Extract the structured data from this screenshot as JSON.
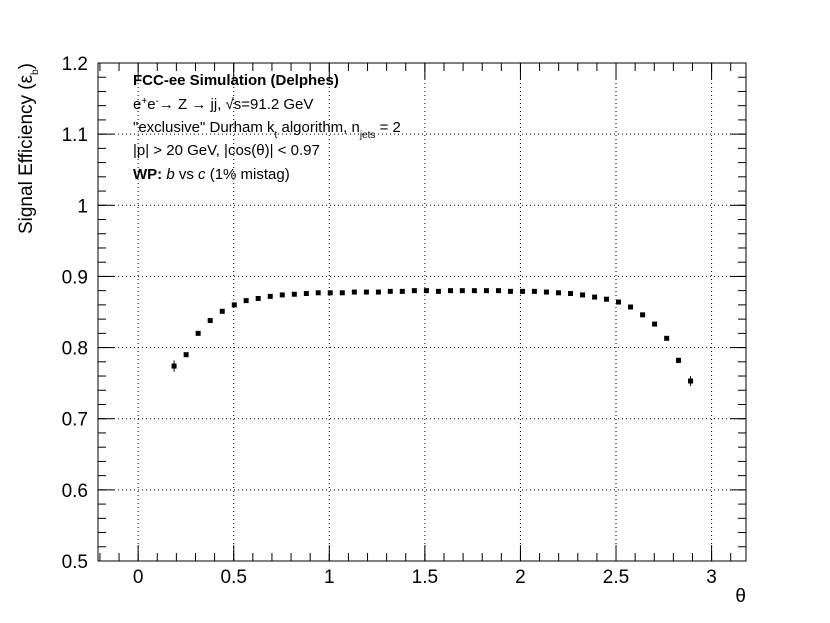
{
  "chart_data": {
    "type": "scatter",
    "x_label": "θ",
    "y_label": [
      {
        "text": "Signal Efficiency (ε"
      },
      {
        "text": "b",
        "style": "sub"
      },
      {
        "text": ")"
      }
    ],
    "annotations": [
      [
        {
          "text": "FCC-ee Simulation (Delphes)",
          "style": "bold"
        }
      ],
      [
        {
          "text": "e"
        },
        {
          "text": "+",
          "style": "sup"
        },
        {
          "text": "e"
        },
        {
          "text": "-",
          "style": "sup"
        },
        {
          "text": "→ Z → jj, √s=91.2 GeV"
        }
      ],
      [
        {
          "text": "\"exclusive\" Durham k"
        },
        {
          "text": "t",
          "style": "sub"
        },
        {
          "text": " algorithm, n"
        },
        {
          "text": "jets",
          "style": "sub"
        },
        {
          "text": " = 2"
        }
      ],
      [
        {
          "text": "|p| > 20 GeV, |cos(θ)| < 0.97"
        }
      ],
      [
        {
          "text": "WP:",
          "style": "bold"
        },
        {
          "text": " "
        },
        {
          "text": "b",
          "style": "italic"
        },
        {
          "text": " vs "
        },
        {
          "text": "c",
          "style": "italic"
        },
        {
          "text": " (1% mistag)"
        }
      ]
    ],
    "x": [
      0.188,
      0.251,
      0.314,
      0.377,
      0.44,
      0.503,
      0.565,
      0.628,
      0.691,
      0.754,
      0.817,
      0.88,
      0.942,
      1.005,
      1.068,
      1.131,
      1.194,
      1.257,
      1.319,
      1.382,
      1.445,
      1.508,
      1.571,
      1.634,
      1.696,
      1.759,
      1.822,
      1.885,
      1.948,
      2.011,
      2.073,
      2.136,
      2.199,
      2.262,
      2.325,
      2.388,
      2.45,
      2.513,
      2.576,
      2.639,
      2.702,
      2.765,
      2.827,
      2.89
    ],
    "values": [
      0.774,
      0.79,
      0.82,
      0.838,
      0.851,
      0.86,
      0.866,
      0.869,
      0.872,
      0.874,
      0.875,
      0.876,
      0.877,
      0.877,
      0.877,
      0.878,
      0.878,
      0.878,
      0.879,
      0.879,
      0.88,
      0.88,
      0.879,
      0.88,
      0.88,
      0.88,
      0.88,
      0.88,
      0.879,
      0.879,
      0.879,
      0.878,
      0.877,
      0.876,
      0.874,
      0.871,
      0.868,
      0.864,
      0.857,
      0.846,
      0.833,
      0.813,
      0.782,
      0.753
    ],
    "errors": [
      0.008,
      0.003,
      0.002,
      0.002,
      0.002,
      0.002,
      0.002,
      0.002,
      0.002,
      0.002,
      0.002,
      0.002,
      0.002,
      0.002,
      0.002,
      0.002,
      0.002,
      0.002,
      0.002,
      0.002,
      0.002,
      0.002,
      0.002,
      0.002,
      0.002,
      0.002,
      0.002,
      0.002,
      0.002,
      0.002,
      0.002,
      0.002,
      0.002,
      0.002,
      0.002,
      0.002,
      0.002,
      0.002,
      0.002,
      0.002,
      0.002,
      0.003,
      0.004,
      0.007
    ],
    "color": "#000000",
    "xlim": [
      -0.21,
      3.18
    ],
    "ylim": [
      0.5,
      1.2
    ],
    "xticks": [
      0,
      0.5,
      1,
      1.5,
      2,
      2.5,
      3
    ],
    "yticks": [
      0.5,
      0.6,
      0.7,
      0.8,
      0.9,
      1,
      1.1,
      1.2
    ],
    "grid": true
  }
}
